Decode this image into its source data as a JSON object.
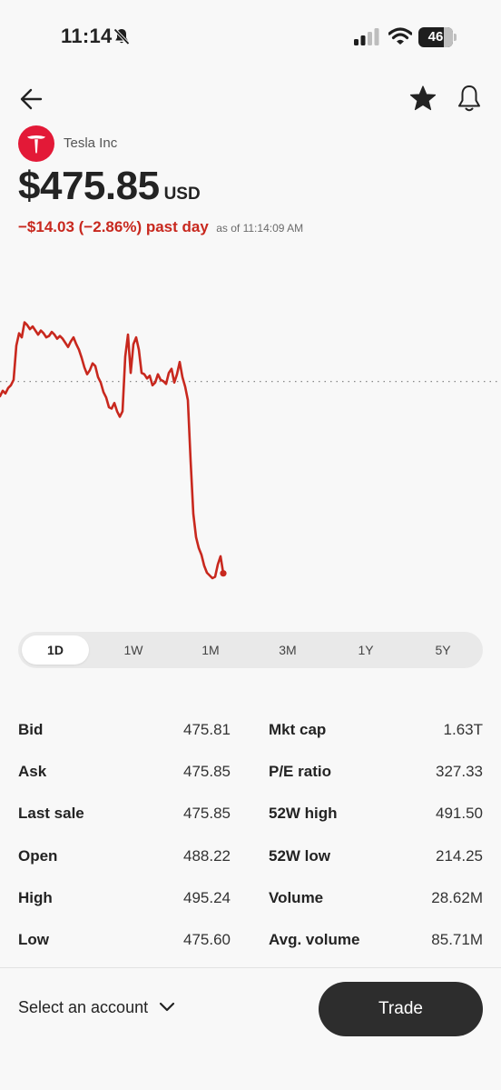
{
  "status_bar": {
    "time": "11:14",
    "battery_level": "46",
    "icons": [
      "bell-slash-icon",
      "signal-icon",
      "wifi-icon",
      "battery-icon"
    ]
  },
  "header": {
    "icons": [
      "back-arrow-icon",
      "star-icon",
      "bell-icon"
    ]
  },
  "stock": {
    "company": "Tesla Inc",
    "logo_icon": "tesla-logo",
    "brand_color": "#e31937",
    "price": "$475.85",
    "currency": "USD",
    "change": "−$14.03 (−2.86%) past day",
    "as_of": "as of 11:14:09 AM",
    "change_color": "#c8281e"
  },
  "chart_data": {
    "type": "line",
    "color": "#c8281e",
    "baseline_label": "",
    "x": [
      0,
      3,
      6,
      9,
      12,
      15,
      18,
      21,
      24,
      27,
      30,
      33,
      36,
      39,
      42,
      45,
      48,
      51,
      54,
      57,
      60,
      63,
      66,
      69,
      72,
      75,
      78,
      81,
      84,
      87,
      90,
      93,
      96,
      99,
      102,
      105,
      108,
      111,
      114,
      117,
      120,
      123,
      126,
      129,
      132,
      135,
      138,
      141,
      144,
      147,
      150,
      153,
      156,
      159,
      162,
      165,
      168,
      171,
      174,
      177,
      180,
      183,
      186,
      189,
      192,
      195,
      198,
      201,
      204,
      207,
      210,
      213,
      216,
      219,
      222,
      225,
      228,
      231,
      234,
      237,
      240,
      243,
      246
    ],
    "values": [
      488.8,
      489.2,
      489.0,
      489.4,
      489.6,
      490.0,
      492.5,
      493.4,
      493.1,
      494.2,
      494.0,
      493.7,
      493.9,
      493.6,
      493.3,
      493.6,
      493.4,
      493.1,
      493.2,
      493.5,
      493.3,
      493.0,
      493.2,
      493.0,
      492.7,
      492.4,
      492.8,
      493.1,
      492.6,
      492.2,
      491.6,
      490.9,
      490.4,
      490.7,
      491.2,
      491.0,
      490.2,
      489.8,
      489.1,
      488.7,
      488.0,
      487.9,
      488.3,
      487.7,
      487.3,
      487.7,
      491.7,
      493.3,
      490.5,
      492.6,
      493.1,
      492.2,
      490.5,
      490.4,
      490.1,
      490.3,
      489.6,
      489.8,
      490.4,
      490.0,
      489.9,
      489.7,
      490.5,
      490.8,
      489.8,
      490.4,
      491.3,
      490.2,
      489.5,
      488.5,
      484.1,
      480.2,
      478.5,
      477.7,
      477.2,
      476.4,
      475.9,
      475.7,
      475.5,
      475.6,
      476.5,
      477.1,
      475.85
    ],
    "previous_close": 489.88,
    "ylim": [
      474.9,
      495.5
    ],
    "xlim": [
      0,
      552
    ],
    "grid": false
  },
  "ranges": [
    {
      "label": "1D",
      "active": true
    },
    {
      "label": "1W",
      "active": false
    },
    {
      "label": "1M",
      "active": false
    },
    {
      "label": "3M",
      "active": false
    },
    {
      "label": "1Y",
      "active": false
    },
    {
      "label": "5Y",
      "active": false
    }
  ],
  "stats": {
    "left": [
      {
        "label": "Bid",
        "value": "475.81"
      },
      {
        "label": "Ask",
        "value": "475.85"
      },
      {
        "label": "Last sale",
        "value": "475.85"
      },
      {
        "label": "Open",
        "value": "488.22"
      },
      {
        "label": "High",
        "value": "495.24"
      },
      {
        "label": "Low",
        "value": "475.60"
      }
    ],
    "right": [
      {
        "label": "Mkt cap",
        "value": "1.63T"
      },
      {
        "label": "P/E ratio",
        "value": "327.33"
      },
      {
        "label": "52W high",
        "value": "491.50"
      },
      {
        "label": "52W low",
        "value": "214.25"
      },
      {
        "label": "Volume",
        "value": "28.62M"
      },
      {
        "label": "Avg. volume",
        "value": "85.71M"
      }
    ]
  },
  "footer": {
    "account_label": "Select an account",
    "trade_label": "Trade"
  }
}
